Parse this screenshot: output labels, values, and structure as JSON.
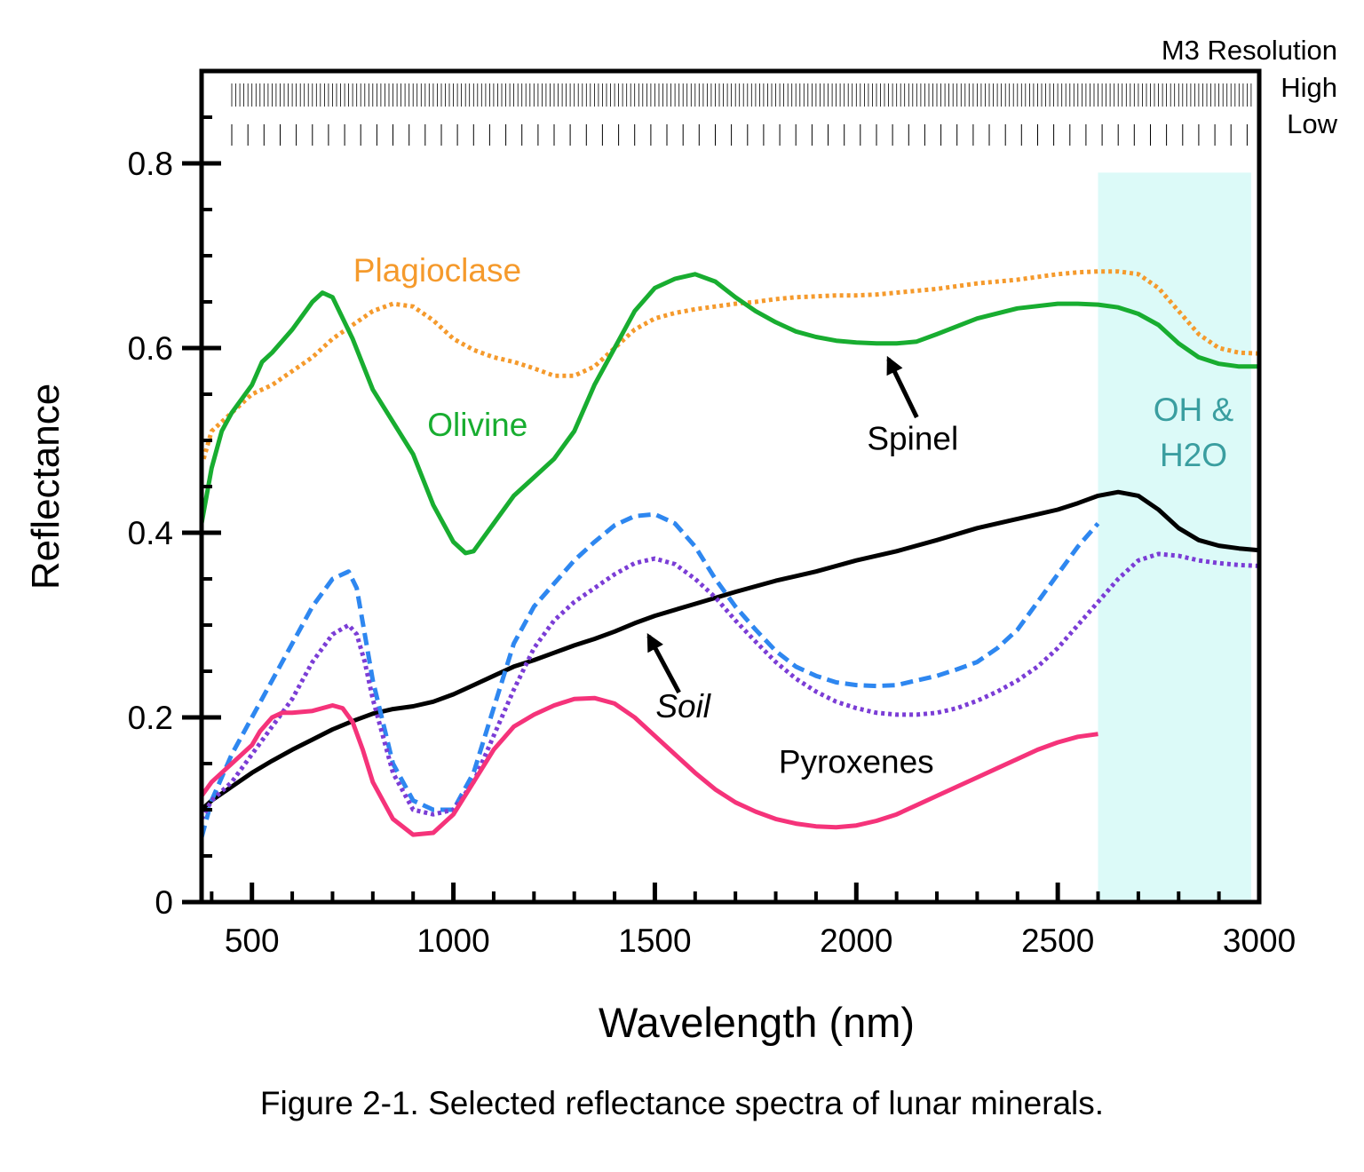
{
  "chart_data": {
    "type": "line",
    "xlabel": "Wavelength (nm)",
    "ylabel": "Reflectance",
    "xlim": [
      375,
      3000
    ],
    "ylim": [
      0,
      0.9
    ],
    "xticks": [
      500,
      1000,
      1500,
      2000,
      2500,
      3000
    ],
    "xtick_labels": [
      "500",
      "1000",
      "1500",
      "2000",
      "2500",
      "3000"
    ],
    "yticks": [
      0,
      0.2,
      0.4,
      0.6,
      0.8
    ],
    "ytick_labels": [
      "0",
      "0.2",
      "0.4",
      "0.6",
      "0.8"
    ],
    "grid": false,
    "legend": "none",
    "shaded_region": {
      "x_start": 2600,
      "x_end": 2980,
      "y_top": 0.79,
      "color": "#dcfaf8",
      "label_line1": "OH &",
      "label_line2": "H2O",
      "label_color": "#3a9ea0"
    },
    "resolution_header": {
      "title": "M3 Resolution",
      "high_label": "High",
      "low_label": "Low",
      "high_spacing_nm": 10,
      "low_spacing_nm": 40,
      "x_start": 450,
      "x_end": 2980
    },
    "series": [
      {
        "key": "plagioclase",
        "color": "#f59a2c",
        "dash": "dotted",
        "x": [
          380,
          400,
          450,
          500,
          550,
          600,
          650,
          700,
          750,
          800,
          850,
          900,
          950,
          1000,
          1050,
          1100,
          1150,
          1200,
          1250,
          1300,
          1350,
          1400,
          1450,
          1500,
          1550,
          1600,
          1650,
          1700,
          1750,
          1800,
          1850,
          1900,
          1950,
          2000,
          2050,
          2100,
          2150,
          2200,
          2250,
          2300,
          2350,
          2400,
          2450,
          2500,
          2550,
          2600,
          2650,
          2700,
          2750,
          2800,
          2850,
          2900,
          2950,
          3000
        ],
        "y": [
          0.48,
          0.51,
          0.53,
          0.55,
          0.56,
          0.575,
          0.59,
          0.61,
          0.625,
          0.64,
          0.648,
          0.645,
          0.63,
          0.61,
          0.598,
          0.59,
          0.585,
          0.578,
          0.57,
          0.57,
          0.58,
          0.6,
          0.62,
          0.632,
          0.638,
          0.642,
          0.645,
          0.648,
          0.65,
          0.653,
          0.655,
          0.656,
          0.657,
          0.657,
          0.658,
          0.66,
          0.662,
          0.664,
          0.667,
          0.67,
          0.672,
          0.674,
          0.677,
          0.68,
          0.682,
          0.683,
          0.683,
          0.68,
          0.665,
          0.64,
          0.615,
          0.6,
          0.595,
          0.594
        ]
      },
      {
        "key": "olivine",
        "color": "#18ad30",
        "dash": "solid",
        "x": [
          375,
          400,
          425,
          450,
          500,
          525,
          550,
          600,
          650,
          675,
          700,
          750,
          800,
          850,
          900,
          950,
          1000,
          1030,
          1050,
          1075,
          1100,
          1150,
          1200,
          1250,
          1300,
          1350,
          1400,
          1450,
          1500,
          1550,
          1600,
          1650,
          1700,
          1750,
          1800,
          1850,
          1900,
          1950,
          2000,
          2050,
          2100,
          2150,
          2200,
          2300,
          2400,
          2500,
          2550,
          2600,
          2650,
          2700,
          2750,
          2800,
          2850,
          2900,
          2950,
          3000
        ],
        "y": [
          0.41,
          0.47,
          0.51,
          0.53,
          0.56,
          0.585,
          0.595,
          0.62,
          0.65,
          0.66,
          0.655,
          0.61,
          0.555,
          0.52,
          0.485,
          0.43,
          0.39,
          0.378,
          0.38,
          0.395,
          0.41,
          0.44,
          0.46,
          0.48,
          0.51,
          0.56,
          0.6,
          0.64,
          0.665,
          0.675,
          0.68,
          0.672,
          0.655,
          0.64,
          0.628,
          0.618,
          0.612,
          0.608,
          0.606,
          0.605,
          0.605,
          0.607,
          0.615,
          0.632,
          0.643,
          0.648,
          0.648,
          0.647,
          0.644,
          0.637,
          0.625,
          0.605,
          0.59,
          0.583,
          0.58,
          0.58
        ]
      },
      {
        "key": "spinel",
        "color": "#000000",
        "dash": "solid",
        "x": [
          375,
          400,
          450,
          500,
          550,
          600,
          650,
          700,
          750,
          800,
          850,
          900,
          950,
          1000,
          1050,
          1100,
          1150,
          1200,
          1250,
          1300,
          1350,
          1400,
          1450,
          1500,
          1600,
          1700,
          1800,
          1900,
          2000,
          2100,
          2200,
          2300,
          2400,
          2500,
          2550,
          2600,
          2650,
          2700,
          2750,
          2800,
          2850,
          2900,
          2950,
          3000
        ],
        "y": [
          0.1,
          0.11,
          0.125,
          0.14,
          0.153,
          0.165,
          0.176,
          0.187,
          0.196,
          0.204,
          0.209,
          0.212,
          0.217,
          0.225,
          0.235,
          0.245,
          0.255,
          0.262,
          0.27,
          0.278,
          0.285,
          0.293,
          0.302,
          0.31,
          0.323,
          0.336,
          0.348,
          0.358,
          0.37,
          0.38,
          0.392,
          0.405,
          0.415,
          0.425,
          0.432,
          0.44,
          0.444,
          0.44,
          0.425,
          0.405,
          0.392,
          0.386,
          0.383,
          0.381
        ]
      },
      {
        "key": "pyroxene-blue",
        "color": "#2e87f0",
        "dash": "dashed",
        "x": [
          375,
          400,
          450,
          500,
          550,
          600,
          650,
          700,
          740,
          760,
          780,
          800,
          850,
          900,
          950,
          1000,
          1050,
          1100,
          1150,
          1200,
          1250,
          1300,
          1350,
          1400,
          1450,
          1500,
          1550,
          1600,
          1650,
          1700,
          1750,
          1800,
          1850,
          1900,
          1950,
          2000,
          2050,
          2100,
          2150,
          2200,
          2250,
          2300,
          2350,
          2400,
          2450,
          2500,
          2550,
          2600
        ],
        "y": [
          0.07,
          0.11,
          0.16,
          0.2,
          0.24,
          0.28,
          0.32,
          0.35,
          0.358,
          0.34,
          0.29,
          0.24,
          0.15,
          0.11,
          0.1,
          0.1,
          0.14,
          0.21,
          0.28,
          0.32,
          0.345,
          0.37,
          0.39,
          0.408,
          0.418,
          0.42,
          0.41,
          0.385,
          0.35,
          0.32,
          0.295,
          0.272,
          0.255,
          0.245,
          0.238,
          0.235,
          0.234,
          0.235,
          0.24,
          0.245,
          0.252,
          0.26,
          0.275,
          0.295,
          0.325,
          0.355,
          0.385,
          0.41
        ]
      },
      {
        "key": "pyroxene-purple",
        "color": "#7b3dd6",
        "dash": "dotted",
        "x": [
          375,
          400,
          450,
          500,
          550,
          600,
          650,
          700,
          740,
          760,
          780,
          800,
          850,
          900,
          950,
          1000,
          1050,
          1100,
          1150,
          1200,
          1250,
          1300,
          1350,
          1400,
          1450,
          1500,
          1550,
          1600,
          1650,
          1700,
          1750,
          1800,
          1850,
          1900,
          1950,
          2000,
          2050,
          2100,
          2150,
          2200,
          2250,
          2300,
          2350,
          2400,
          2450,
          2500,
          2550,
          2600,
          2650,
          2700,
          2750,
          2800,
          2850,
          2900,
          2950,
          3000
        ],
        "y": [
          0.09,
          0.11,
          0.13,
          0.16,
          0.19,
          0.22,
          0.26,
          0.29,
          0.3,
          0.29,
          0.26,
          0.22,
          0.14,
          0.1,
          0.095,
          0.1,
          0.13,
          0.18,
          0.23,
          0.275,
          0.305,
          0.325,
          0.34,
          0.355,
          0.367,
          0.372,
          0.366,
          0.35,
          0.33,
          0.305,
          0.282,
          0.26,
          0.242,
          0.228,
          0.217,
          0.21,
          0.205,
          0.203,
          0.203,
          0.205,
          0.21,
          0.218,
          0.228,
          0.24,
          0.255,
          0.275,
          0.3,
          0.325,
          0.35,
          0.37,
          0.377,
          0.375,
          0.37,
          0.367,
          0.365,
          0.364
        ]
      },
      {
        "key": "pyroxene-pink",
        "color": "#f5337a",
        "dash": "solid",
        "x": [
          375,
          400,
          450,
          500,
          520,
          550,
          575,
          600,
          650,
          700,
          725,
          750,
          775,
          800,
          850,
          900,
          950,
          1000,
          1050,
          1100,
          1150,
          1200,
          1250,
          1300,
          1350,
          1400,
          1450,
          1500,
          1550,
          1600,
          1650,
          1700,
          1750,
          1800,
          1850,
          1900,
          1950,
          2000,
          2050,
          2100,
          2150,
          2200,
          2250,
          2300,
          2350,
          2400,
          2450,
          2500,
          2550,
          2600
        ],
        "y": [
          0.115,
          0.13,
          0.15,
          0.17,
          0.185,
          0.2,
          0.205,
          0.205,
          0.207,
          0.213,
          0.21,
          0.195,
          0.165,
          0.13,
          0.09,
          0.073,
          0.075,
          0.095,
          0.13,
          0.165,
          0.19,
          0.203,
          0.213,
          0.22,
          0.221,
          0.215,
          0.2,
          0.18,
          0.16,
          0.14,
          0.122,
          0.108,
          0.098,
          0.09,
          0.085,
          0.082,
          0.081,
          0.083,
          0.088,
          0.095,
          0.105,
          0.115,
          0.125,
          0.135,
          0.145,
          0.155,
          0.165,
          0.173,
          0.179,
          0.182
        ]
      }
    ],
    "annotations": [
      {
        "text": "Plagioclase",
        "color": "#f59a2c",
        "x": 960,
        "y": 0.672,
        "anchor": "middle",
        "italic": false
      },
      {
        "text": "Olivine",
        "color": "#18ad30",
        "x": 1060,
        "y": 0.505,
        "anchor": "middle",
        "italic": false
      },
      {
        "text": "Spinel",
        "color": "#000000",
        "x": 2140,
        "y": 0.49,
        "anchor": "middle",
        "italic": false
      },
      {
        "text": "Soil",
        "color": "#000000",
        "x": 1570,
        "y": 0.2,
        "anchor": "middle",
        "italic": true
      },
      {
        "text": "Pyroxenes",
        "color": "#000000",
        "x": 2000,
        "y": 0.14,
        "anchor": "middle",
        "italic": false
      }
    ],
    "arrows": [
      {
        "name": "spinel-arrow",
        "from": [
          2150,
          0.525
        ],
        "to": [
          2080,
          0.588
        ]
      },
      {
        "name": "soil-arrow",
        "from": [
          1560,
          0.227
        ],
        "to": [
          1485,
          0.288
        ]
      }
    ]
  },
  "caption": "Figure 2-1. Selected reflectance spectra of lunar minerals."
}
